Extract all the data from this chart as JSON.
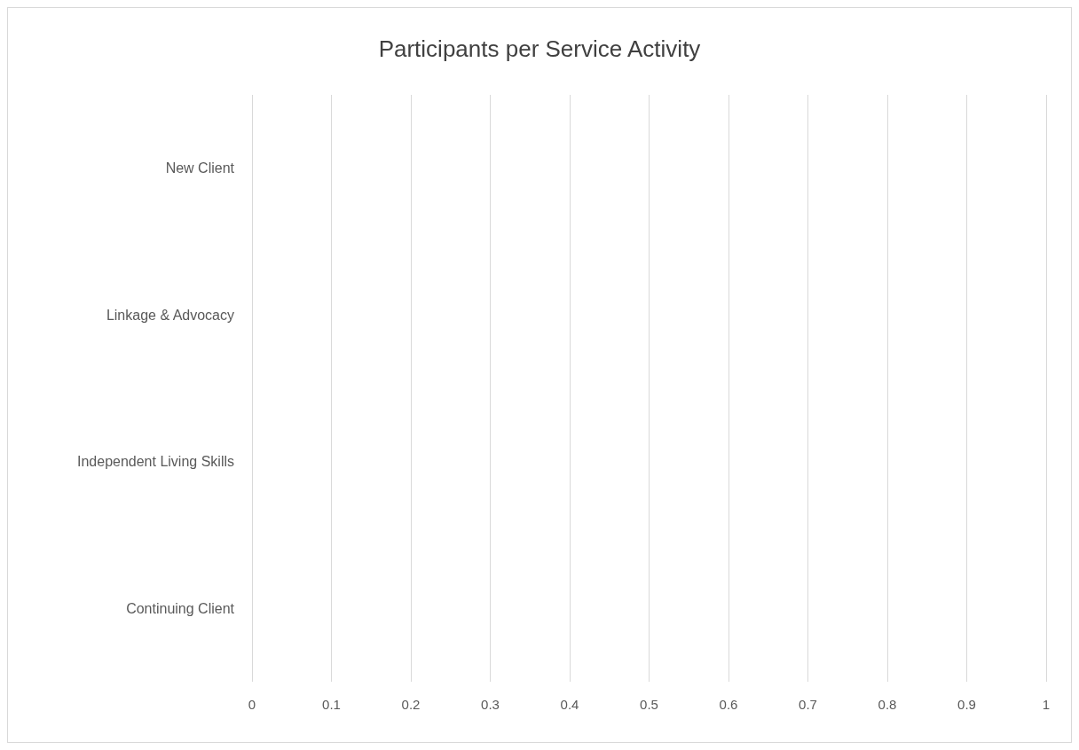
{
  "chart_data": {
    "type": "bar",
    "orientation": "horizontal",
    "title": "Participants per Service Activity",
    "categories": [
      "New Client",
      "Linkage & Advocacy",
      "Independent Living Skills",
      "Continuing Client"
    ],
    "values": [
      0,
      0,
      0,
      0
    ],
    "xlim": [
      0,
      1
    ],
    "xticks": [
      0,
      0.1,
      0.2,
      0.3,
      0.4,
      0.5,
      0.6,
      0.7,
      0.8,
      0.9,
      1
    ],
    "grid": "x"
  }
}
